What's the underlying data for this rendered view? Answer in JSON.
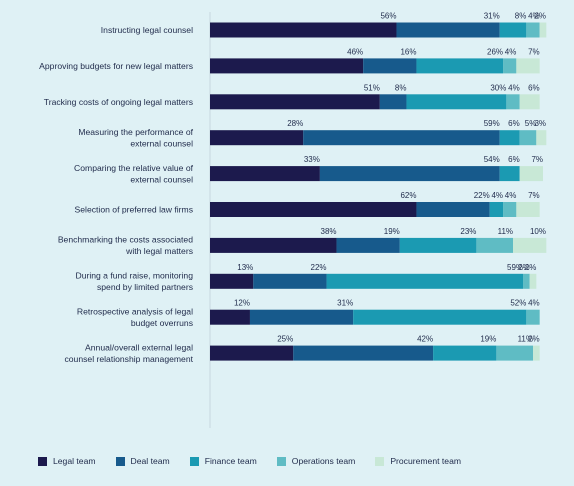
{
  "chart_data": {
    "type": "bar",
    "orientation": "horizontal",
    "stacked": true,
    "categories": [
      [
        "Instructing legal counsel"
      ],
      [
        "Approving budgets for new legal matters"
      ],
      [
        "Tracking costs of ongoing legal matters"
      ],
      [
        "Measuring the performance of",
        "external counsel"
      ],
      [
        "Comparing the relative value of",
        "external counsel"
      ],
      [
        "Selection of preferred law firms"
      ],
      [
        "Benchmarking the costs associated",
        "with legal matters"
      ],
      [
        "During a fund raise, monitoring",
        "spend by limited partners"
      ],
      [
        "Retrospective analysis of legal",
        "budget overruns"
      ],
      [
        "Annual/overall external legal",
        "counsel relationship management"
      ]
    ],
    "series": [
      {
        "name": "Legal team",
        "color": "#1c1a4d",
        "values": [
          56,
          46,
          51,
          28,
          33,
          62,
          38,
          13,
          12,
          25
        ]
      },
      {
        "name": "Deal team",
        "color": "#175a8c",
        "values": [
          31,
          16,
          8,
          59,
          54,
          22,
          19,
          22,
          31,
          42
        ]
      },
      {
        "name": "Finance team",
        "color": "#1b9ab2",
        "values": [
          8,
          26,
          30,
          6,
          6,
          4,
          23,
          59,
          52,
          19
        ]
      },
      {
        "name": "Operations team",
        "color": "#5fbcc4",
        "values": [
          4,
          4,
          4,
          5,
          null,
          4,
          11,
          2,
          4,
          11
        ]
      },
      {
        "name": "Procurement team",
        "color": "#c8e8d6",
        "values": [
          2,
          7,
          6,
          3,
          7,
          7,
          10,
          2,
          null,
          2
        ]
      }
    ],
    "xlim": [
      0,
      100
    ],
    "legend_position": "bottom-left"
  }
}
